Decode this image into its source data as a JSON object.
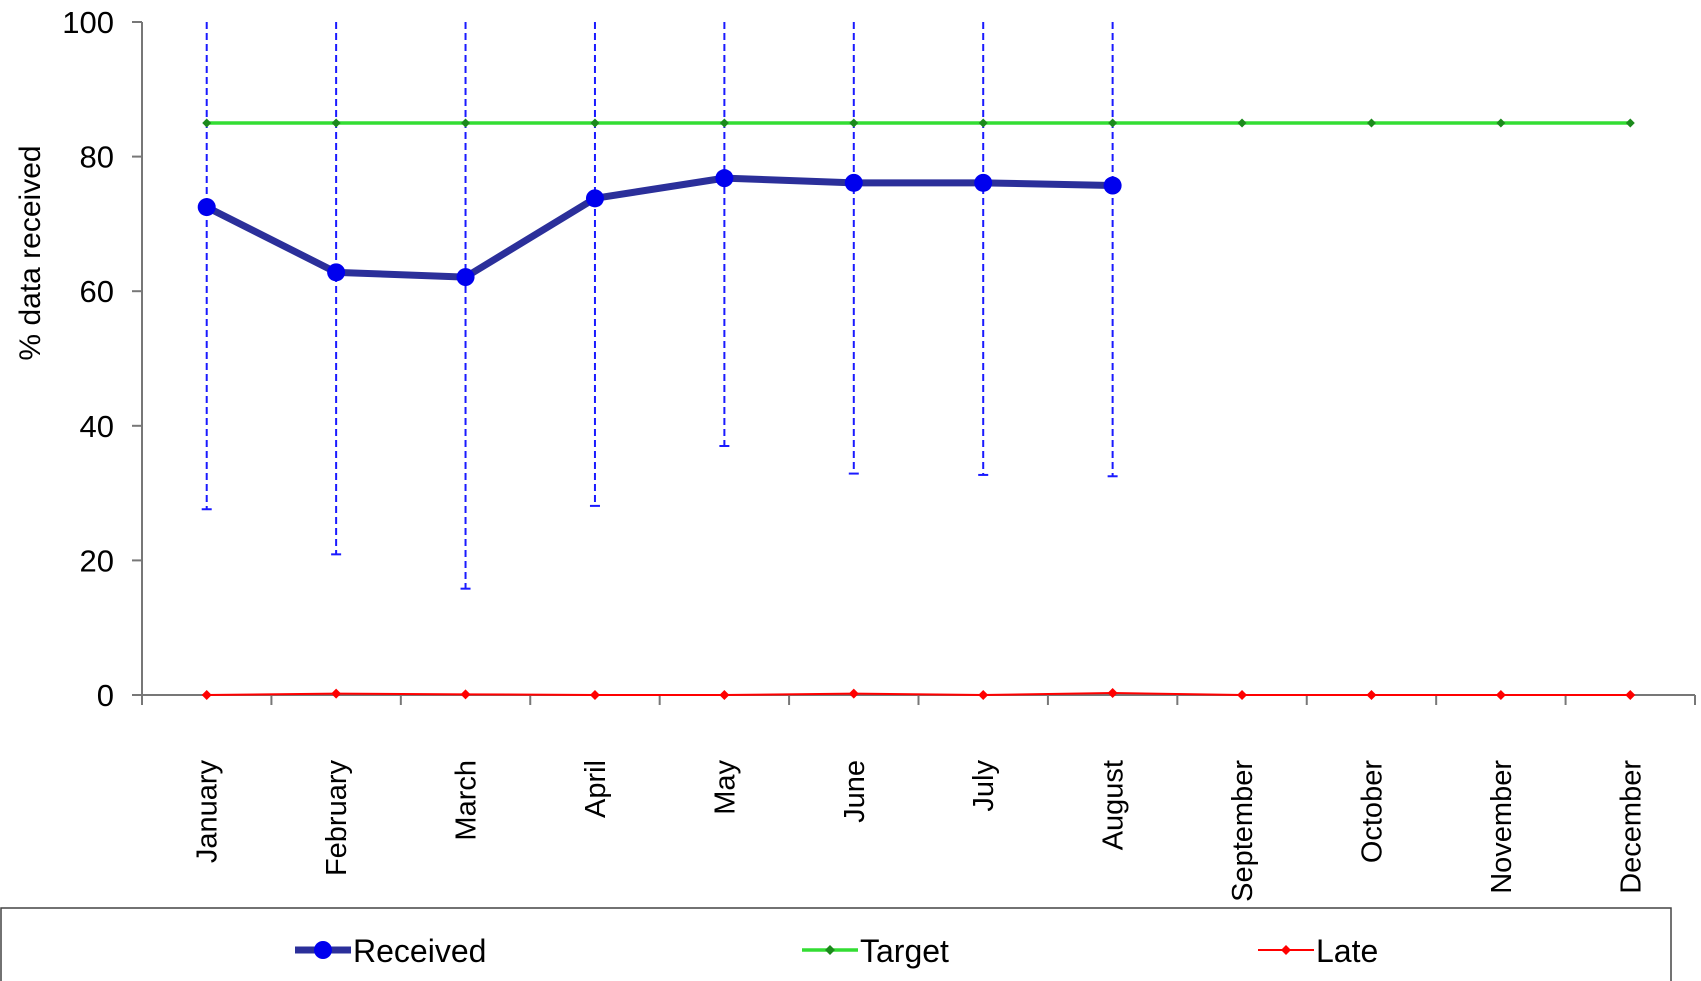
{
  "chart_data": {
    "type": "line",
    "categories": [
      "January",
      "February",
      "March",
      "April",
      "May",
      "June",
      "July",
      "August",
      "September",
      "October",
      "November",
      "December"
    ],
    "series": [
      {
        "name": "Received",
        "color": "#2b2f9a",
        "values": [
          72.5,
          62.8,
          62.1,
          73.8,
          76.8,
          76.1,
          76.1,
          75.7,
          null,
          null,
          null,
          null
        ],
        "error_low": [
          27.6,
          20.9,
          15.8,
          28.1,
          37.0,
          32.9,
          32.7,
          32.5,
          null,
          null,
          null,
          null
        ],
        "error_high": [
          100,
          100,
          100,
          100,
          100,
          100,
          100,
          100,
          null,
          null,
          null,
          null
        ]
      },
      {
        "name": "Target",
        "color": "#33dd33",
        "values": [
          85,
          85,
          85,
          85,
          85,
          85,
          85,
          85,
          85,
          85,
          85,
          85
        ]
      },
      {
        "name": "Late",
        "color": "#ff0000",
        "values": [
          0,
          0.2,
          0.1,
          0,
          0,
          0.2,
          0,
          0.3,
          0,
          0,
          0,
          0
        ]
      }
    ],
    "error_bar_color": "#1a1aff",
    "ylabel": "% data received",
    "xlabel": "",
    "ylim": [
      0,
      100
    ],
    "yticks": [
      0,
      20,
      40,
      60,
      80,
      100
    ],
    "grid": false,
    "legend_placement": "bottom"
  }
}
